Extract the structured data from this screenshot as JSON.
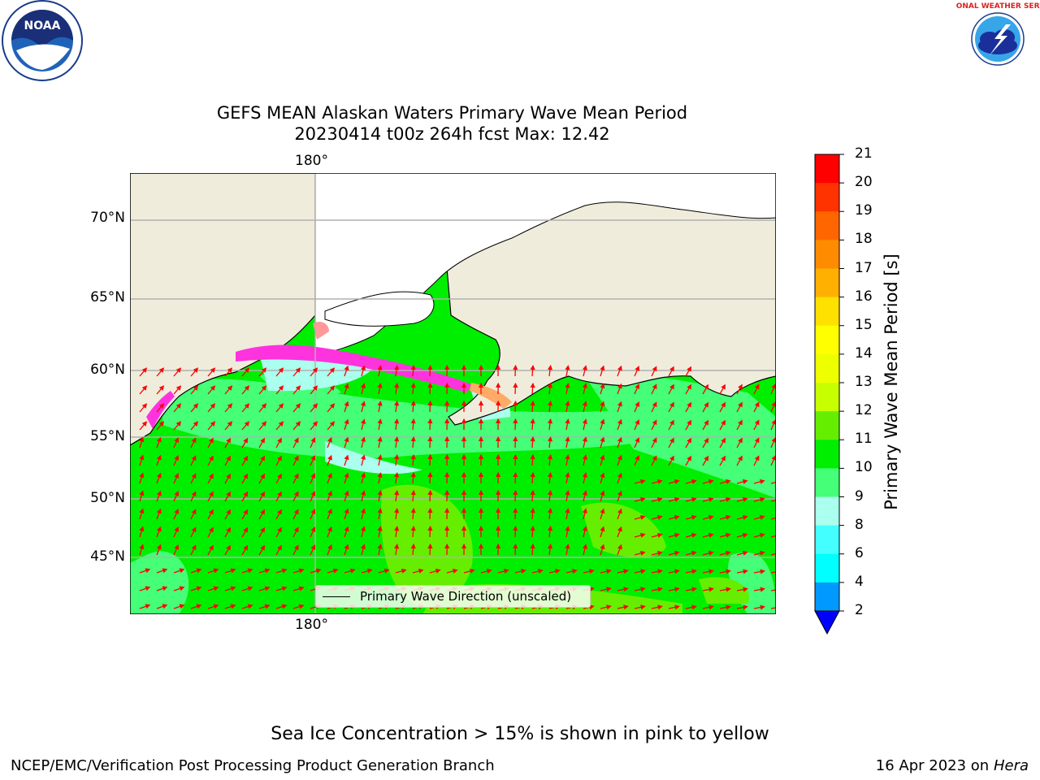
{
  "header": {
    "title_line1": "GEFS MEAN Alaskan Waters Primary Wave Mean Period",
    "title_line2": "20230414 t00z 264h fcst   Max: 12.42"
  },
  "logos": {
    "noaa_text": "NOAA",
    "nws_text": "NATIONAL WEATHER SERVICE"
  },
  "map": {
    "lat_labels": [
      "70°N",
      "65°N",
      "60°N",
      "55°N",
      "50°N",
      "45°N"
    ],
    "lon_top": "180°",
    "lon_bottom": "180°",
    "legend_label": "Primary Wave Direction (unscaled)",
    "colors": {
      "land": "#efecdc",
      "water_base": "#00ee00",
      "arrow": "#ff0000",
      "ice": "#ff33dd"
    }
  },
  "colorbar": {
    "label": "Primary Wave Mean Period [s]",
    "ticks": [
      "21",
      "20",
      "19",
      "18",
      "17",
      "16",
      "15",
      "14",
      "13",
      "12",
      "11",
      "10",
      "9",
      "8",
      "6",
      "4",
      "2"
    ],
    "colors": [
      "#ff0000",
      "#ff3300",
      "#ff6600",
      "#ff8c00",
      "#ffb000",
      "#ffe100",
      "#ffff00",
      "#eeff00",
      "#c8ff00",
      "#66ee00",
      "#00ee00",
      "#44ff77",
      "#aaffee",
      "#44ffff",
      "#00ffff",
      "#0099ff",
      "#0055ff"
    ],
    "extend_color": "#0000ff"
  },
  "footer": {
    "ice_note": "Sea Ice Concentration > 15% is shown in pink to yellow",
    "branch": "NCEP/EMC/Verification Post Processing Product Generation Branch",
    "date": "16 Apr 2023 on ",
    "host": "Hera"
  }
}
